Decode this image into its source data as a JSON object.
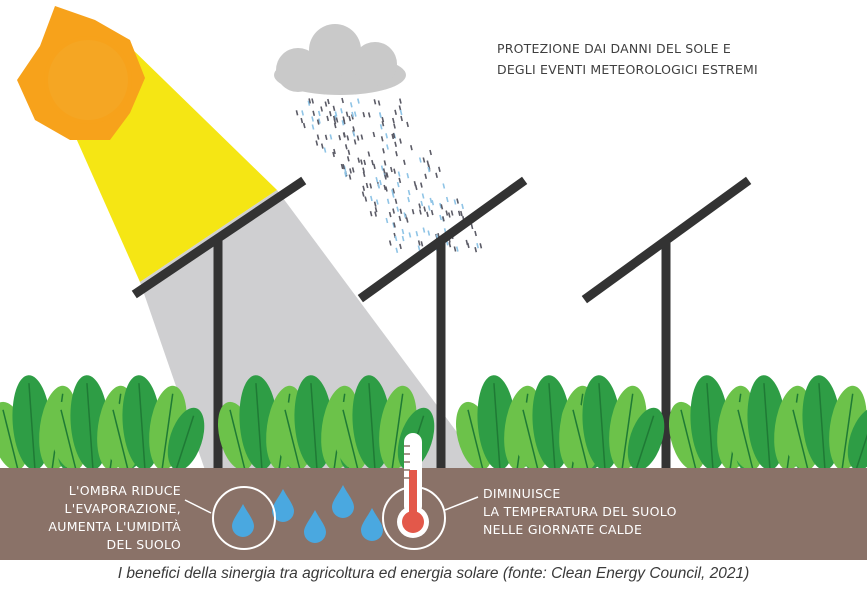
{
  "heading": {
    "line1": "PROTEZIONE DAI DANNI DEL SOLE E",
    "line2": "DEGLI EVENTI METEOROLOGICI ESTREMI"
  },
  "soil_labels": {
    "left": [
      "L'OMBRA RIDUCE",
      "L'EVAPORAZIONE,",
      "AUMENTA L'UMIDITÀ",
      "DEL SUOLO"
    ],
    "right": [
      "DIMINUISCE",
      "LA TEMPERATURA DEL SUOLO",
      "NELLE GIORNATE CALDE"
    ]
  },
  "caption": "I benefici della sinergia tra agricoltura ed energia solare (fonte: Clean Energy Council, 2021)",
  "icons": [
    "sun-icon",
    "cloud-icon",
    "rain-icon",
    "solar-panel-icon",
    "plant-icon",
    "water-drop-icon",
    "thermometer-icon"
  ],
  "colors": {
    "sun": "#f7a21b",
    "sunbeam": "#f5e614",
    "shadow": "#cfcfd1",
    "panel": "#333333",
    "soil": "#8a7268",
    "leaf_light": "#6cc24a",
    "leaf_dark": "#2e9d45",
    "water": "#4aa8e0",
    "thermo_red": "#e3584a",
    "cloud": "#c9c9c9"
  }
}
